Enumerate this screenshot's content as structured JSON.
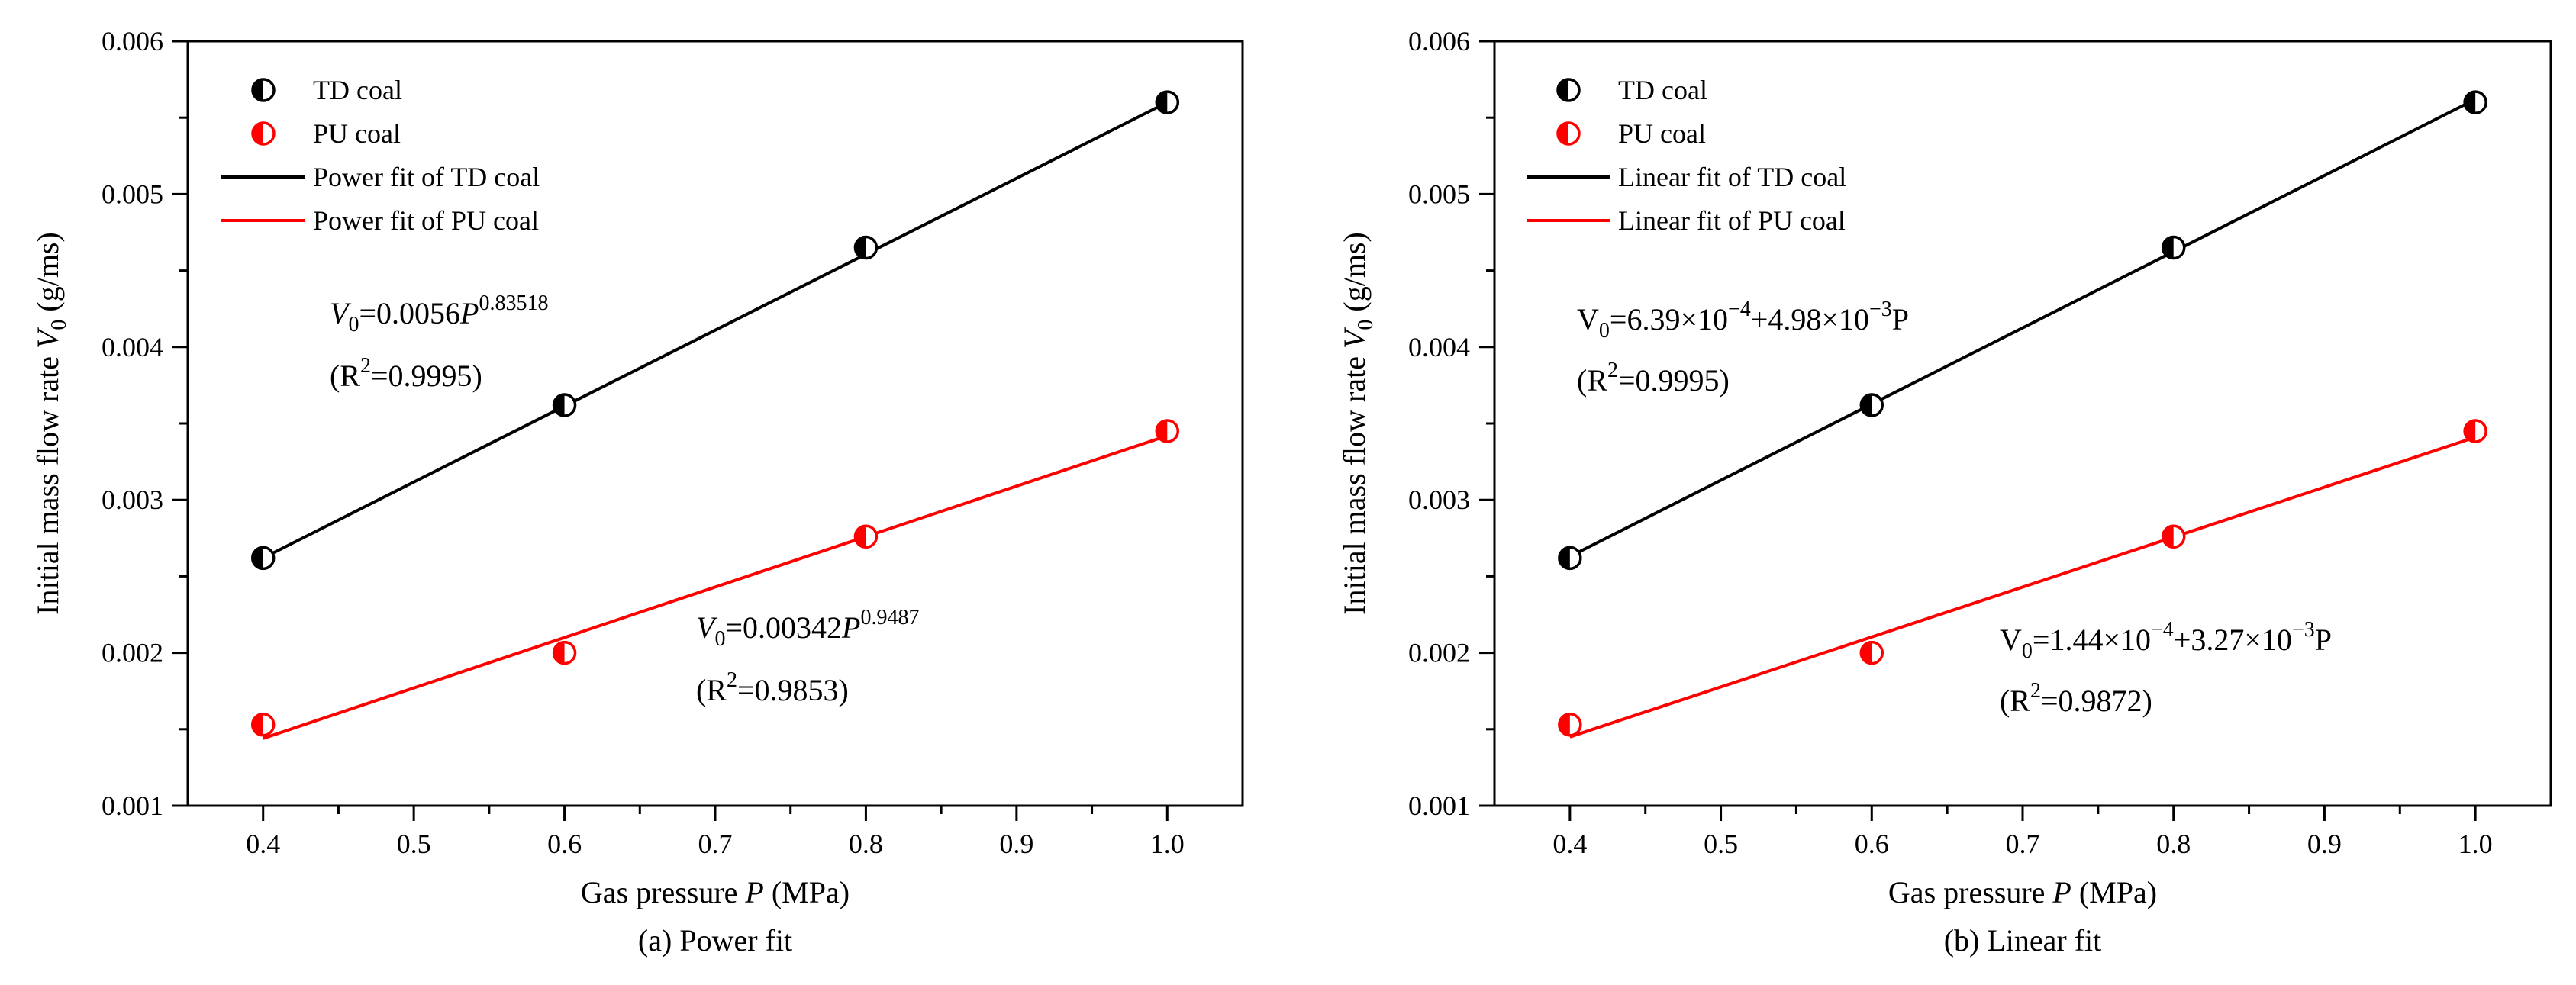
{
  "colors": {
    "td": "#000000",
    "pu": "#ff0000",
    "axis": "#000000"
  },
  "chart_data": [
    {
      "type": "scatter",
      "caption": "(a) Power fit",
      "xlabel": {
        "pre": "Gas pressure ",
        "var": "P",
        "post": " (MPa)"
      },
      "ylabel": {
        "pre": "Initial mass flow rate ",
        "var": "V",
        "sub": "0",
        "post": " (g/ms)"
      },
      "xlim": [
        0.35,
        1.05
      ],
      "ylim": [
        0.001,
        0.006
      ],
      "xticks": [
        0.4,
        0.5,
        0.6,
        0.7,
        0.8,
        0.9,
        1.0
      ],
      "xtick_labels": [
        "0.4",
        "0.5",
        "0.6",
        "0.7",
        "0.8",
        "0.9",
        "1.0"
      ],
      "yticks": [
        0.001,
        0.002,
        0.003,
        0.004,
        0.005,
        0.006
      ],
      "ytick_labels": [
        "0.001",
        "0.002",
        "0.003",
        "0.004",
        "0.005",
        "0.006"
      ],
      "legend": {
        "placement": "top-left",
        "entries": [
          {
            "label": "TD coal",
            "kind": "marker",
            "series": "td"
          },
          {
            "label": "PU coal",
            "kind": "marker",
            "series": "pu"
          },
          {
            "label": "Power fit of TD coal",
            "kind": "line",
            "series": "td"
          },
          {
            "label": "Power fit of PU coal",
            "kind": "line",
            "series": "pu"
          }
        ]
      },
      "series": [
        {
          "key": "td",
          "name": "TD coal",
          "x": [
            0.4,
            0.6,
            0.8,
            1.0
          ],
          "y": [
            0.00262,
            0.00362,
            0.00465,
            0.0056
          ]
        },
        {
          "key": "pu",
          "name": "PU coal",
          "x": [
            0.4,
            0.6,
            0.8,
            1.0
          ],
          "y": [
            0.00153,
            0.002,
            0.00276,
            0.00345
          ]
        }
      ],
      "fits": [
        {
          "key": "td",
          "name": "Power fit of TD coal",
          "x": [
            0.4,
            1.0
          ],
          "y": [
            0.00262,
            0.0056
          ]
        },
        {
          "key": "pu",
          "name": "Power fit of PU coal",
          "x": [
            0.4,
            1.0
          ],
          "y": [
            0.00144,
            0.00342
          ]
        }
      ],
      "annotations": [
        {
          "series": "td",
          "equation": "=0.0056",
          "var": "V",
          "sub": "0",
          "var2": "P",
          "exp": "0.83518",
          "r2": "=0.9995"
        },
        {
          "series": "pu",
          "equation": "=0.00342",
          "var": "V",
          "sub": "0",
          "var2": "P",
          "exp": "0.9487",
          "r2": "=0.9853"
        }
      ]
    },
    {
      "type": "scatter",
      "caption": "(b) Linear fit",
      "xlabel": {
        "pre": "Gas pressure ",
        "var": "P",
        "post": " (MPa)"
      },
      "ylabel": {
        "pre": "Initial mass flow rate ",
        "var": "V",
        "sub": "0",
        "post": " (g/ms)"
      },
      "xlim": [
        0.35,
        1.05
      ],
      "ylim": [
        0.001,
        0.006
      ],
      "xticks": [
        0.4,
        0.5,
        0.6,
        0.7,
        0.8,
        0.9,
        1.0
      ],
      "xtick_labels": [
        "0.4",
        "0.5",
        "0.6",
        "0.7",
        "0.8",
        "0.9",
        "1.0"
      ],
      "yticks": [
        0.001,
        0.002,
        0.003,
        0.004,
        0.005,
        0.006
      ],
      "ytick_labels": [
        "0.001",
        "0.002",
        "0.003",
        "0.004",
        "0.005",
        "0.006"
      ],
      "legend": {
        "placement": "top-left",
        "entries": [
          {
            "label": "TD coal",
            "kind": "marker",
            "series": "td"
          },
          {
            "label": "PU coal",
            "kind": "marker",
            "series": "pu"
          },
          {
            "label": "Linear fit of TD coal",
            "kind": "line",
            "series": "td"
          },
          {
            "label": "Linear fit of PU coal",
            "kind": "line",
            "series": "pu"
          }
        ]
      },
      "series": [
        {
          "key": "td",
          "name": "TD coal",
          "x": [
            0.4,
            0.6,
            0.8,
            1.0
          ],
          "y": [
            0.00262,
            0.00362,
            0.00465,
            0.0056
          ]
        },
        {
          "key": "pu",
          "name": "PU coal",
          "x": [
            0.4,
            0.6,
            0.8,
            1.0
          ],
          "y": [
            0.00153,
            0.002,
            0.00276,
            0.00345
          ]
        }
      ],
      "fits": [
        {
          "key": "td",
          "name": "Linear fit of TD coal",
          "x": [
            0.4,
            1.0
          ],
          "y": [
            0.00263,
            0.00562
          ]
        },
        {
          "key": "pu",
          "name": "Linear fit of PU coal",
          "x": [
            0.4,
            1.0
          ],
          "y": [
            0.00145,
            0.00341
          ]
        }
      ],
      "annotations": [
        {
          "series": "td",
          "lhs": "V",
          "sub": "0",
          "parts": [
            "=6.39×10",
            "−4",
            "+4.98×10",
            "−3",
            "P"
          ],
          "r2": "=0.9995"
        },
        {
          "series": "pu",
          "lhs": "V",
          "sub": "0",
          "parts": [
            "=1.44×10",
            "−4",
            "+3.27×10",
            "−3",
            "P"
          ],
          "r2": "=0.9872"
        }
      ]
    }
  ]
}
